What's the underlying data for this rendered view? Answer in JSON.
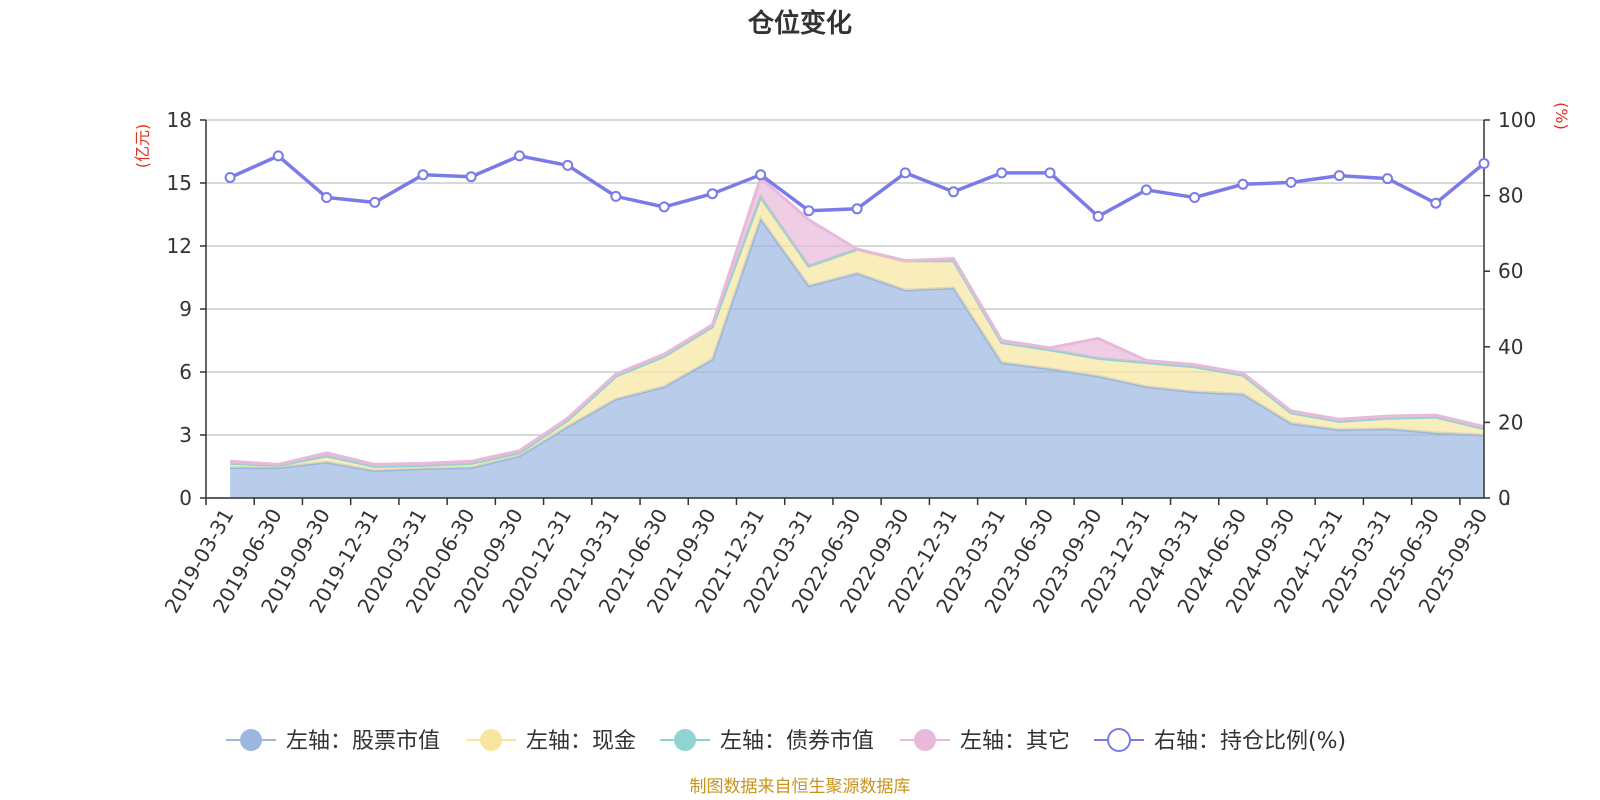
{
  "chart_data": {
    "type": "area",
    "title": "仓位变化",
    "y_left_unit": "(亿元)",
    "y_right_unit": "(%)",
    "y_left_range": [
      0,
      18
    ],
    "y_left_ticks": [
      "0",
      "3",
      "6",
      "9",
      "12",
      "15",
      "18"
    ],
    "y_right_range": [
      0,
      100
    ],
    "y_right_ticks": [
      "0",
      "20",
      "40",
      "60",
      "80",
      "100"
    ],
    "categories": [
      "2019-03-31",
      "2019-06-30",
      "2019-09-30",
      "2019-12-31",
      "2020-03-31",
      "2020-06-30",
      "2020-09-30",
      "2020-12-31",
      "2021-03-31",
      "2021-06-30",
      "2021-09-30",
      "2021-12-31",
      "2022-03-31",
      "2022-06-30",
      "2022-09-30",
      "2022-12-31",
      "2023-03-31",
      "2023-06-30",
      "2023-09-30",
      "2023-12-31",
      "2024-03-31",
      "2024-06-30",
      "2024-09-30",
      "2024-12-31",
      "2025-03-31",
      "2025-06-30",
      "2025-09-30"
    ],
    "series": [
      {
        "name": "左轴：股票市值",
        "axis": "left",
        "color": "#9bb7e0",
        "values": [
          1.45,
          1.45,
          1.7,
          1.3,
          1.4,
          1.45,
          2.0,
          3.4,
          4.7,
          5.3,
          6.6,
          13.3,
          10.1,
          10.7,
          9.9,
          10.0,
          6.45,
          6.15,
          5.8,
          5.3,
          5.05,
          4.95,
          3.55,
          3.25,
          3.3,
          3.1,
          3.0
        ]
      },
      {
        "name": "左轴：现金",
        "axis": "left",
        "color": "#f8e6a0",
        "values": [
          0.2,
          0.1,
          0.3,
          0.2,
          0.15,
          0.2,
          0.15,
          0.3,
          1.1,
          1.45,
          1.55,
          0.95,
          0.9,
          1.1,
          1.35,
          1.3,
          0.95,
          0.9,
          0.85,
          1.15,
          1.2,
          0.9,
          0.5,
          0.4,
          0.5,
          0.75,
          0.3
        ]
      },
      {
        "name": "左轴：债券市值",
        "axis": "left",
        "color": "#8fd4d0",
        "values": [
          0,
          0,
          0,
          0,
          0,
          0,
          0,
          0,
          0,
          0,
          0,
          0.1,
          0.05,
          0.05,
          0.05,
          0,
          0,
          0,
          0,
          0,
          0,
          0,
          0,
          0,
          0,
          0,
          0
        ]
      },
      {
        "name": "左轴：其它",
        "axis": "left",
        "color": "#e8b9da",
        "values": [
          0.1,
          0.05,
          0.15,
          0.1,
          0.1,
          0.1,
          0.1,
          0.1,
          0.1,
          0.1,
          0.1,
          0.9,
          2.2,
          0.0,
          0.0,
          0.1,
          0.1,
          0.1,
          0.95,
          0.1,
          0.1,
          0.1,
          0.1,
          0.1,
          0.1,
          0.1,
          0.1
        ]
      },
      {
        "name": "右轴：持仓比例(%)",
        "axis": "right",
        "color": "#7b7be8",
        "values": [
          84.8,
          90.5,
          79.5,
          78.2,
          85.5,
          85.0,
          90.5,
          88.0,
          79.8,
          77.0,
          80.5,
          85.5,
          76.0,
          76.5,
          86.0,
          81.0,
          86.0,
          86.0,
          74.5,
          81.5,
          79.5,
          83.0,
          83.5,
          85.3,
          84.5,
          78.0,
          88.5
        ]
      }
    ],
    "legend_position": "bottom",
    "grid": true
  },
  "source_note": "制图数据来自恒生聚源数据库"
}
